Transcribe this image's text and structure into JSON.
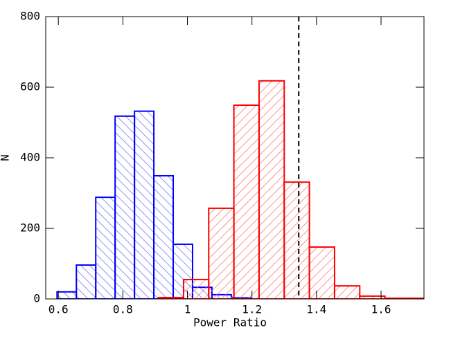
{
  "chart_data": {
    "type": "histogram",
    "xlabel": "Power Ratio",
    "ylabel": "N",
    "xlim": [
      0.561,
      1.733
    ],
    "ylim": [
      0,
      800
    ],
    "xticks": [
      0.6,
      0.8,
      1,
      1.2,
      1.4,
      1.6
    ],
    "yticks": [
      0,
      200,
      400,
      600,
      800
    ],
    "series": [
      {
        "color": "#0000ff",
        "hatch": "backslash",
        "bins": [
          0.596,
          0.656,
          0.716,
          0.776,
          0.836,
          0.896,
          0.956,
          1.016,
          1.076,
          1.136,
          1.196
        ],
        "values": [
          20,
          96,
          288,
          518,
          532,
          349,
          155,
          33,
          12,
          3
        ]
      },
      {
        "color": "#ff0000",
        "hatch": "slash",
        "bins": [
          0.91,
          0.988,
          1.066,
          1.144,
          1.222,
          1.3,
          1.378,
          1.456,
          1.534,
          1.612,
          1.69,
          1.768
        ],
        "values": [
          4,
          55,
          257,
          549,
          618,
          331,
          147,
          37,
          8,
          2,
          2
        ]
      }
    ],
    "vlines": [
      {
        "x": 1.345,
        "color": "#000000",
        "dashed": true
      }
    ]
  }
}
